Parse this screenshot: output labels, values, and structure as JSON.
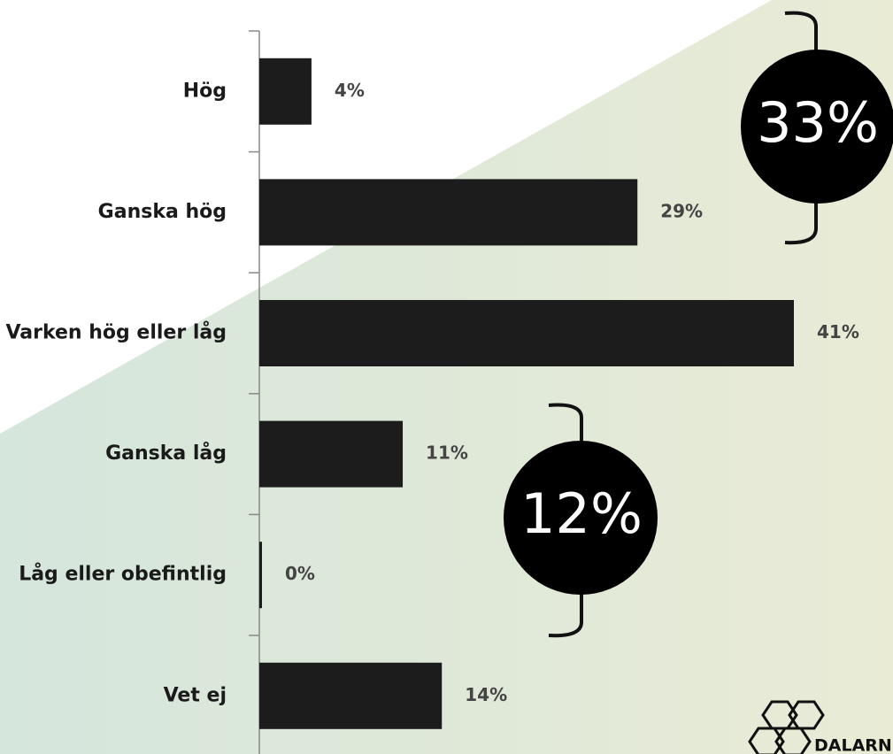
{
  "chart_data": {
    "type": "bar",
    "orientation": "horizontal",
    "categories": [
      "Hög",
      "Ganska hög",
      "Varken hög eller låg",
      "Ganska låg",
      "Låg eller obefintlig",
      "Vet ej"
    ],
    "values": [
      4,
      29,
      41,
      11,
      0,
      14
    ],
    "value_labels": [
      "4%",
      "29%",
      "41%",
      "11%",
      "0%",
      "14%"
    ],
    "color": "#1c1c1c",
    "annotations": [
      "33%",
      "12%"
    ],
    "logo_text": "DALARN"
  }
}
